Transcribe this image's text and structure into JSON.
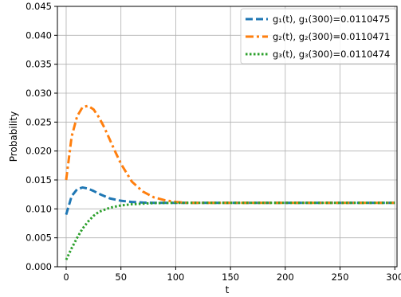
{
  "chart_data": {
    "type": "line",
    "title": "",
    "xlabel": "t",
    "ylabel": "Probability",
    "xlim": [
      -8,
      302
    ],
    "ylim": [
      0,
      0.045
    ],
    "xticks": [
      0,
      50,
      100,
      150,
      200,
      250,
      300
    ],
    "yticks": [
      0.0,
      0.005,
      0.01,
      0.015,
      0.02,
      0.025,
      0.03,
      0.035,
      0.04,
      0.045
    ],
    "grid": true,
    "legend_position": "upper-right",
    "series": [
      {
        "name": "g₁(t), g₁(300)=0.0110475",
        "color": "#1f77b4",
        "style": "dashed",
        "x": [
          0,
          5,
          10,
          15,
          20,
          25,
          30,
          40,
          50,
          60,
          70,
          80,
          100,
          150,
          200,
          250,
          300
        ],
        "y": [
          0.009,
          0.0122,
          0.0134,
          0.0137,
          0.0135,
          0.0131,
          0.0126,
          0.0118,
          0.0114,
          0.0112,
          0.0111,
          0.01105,
          0.01105,
          0.01105,
          0.01105,
          0.01105,
          0.01105
        ]
      },
      {
        "name": "g₂(t), g₂(300)=0.0110471",
        "color": "#ff7f0e",
        "style": "dashdot",
        "x": [
          0,
          5,
          10,
          15,
          20,
          25,
          30,
          35,
          40,
          45,
          50,
          60,
          70,
          80,
          90,
          100,
          110,
          120,
          150,
          200,
          250,
          300
        ],
        "y": [
          0.015,
          0.0225,
          0.026,
          0.0276,
          0.0278,
          0.0272,
          0.0258,
          0.024,
          0.0219,
          0.0198,
          0.0178,
          0.0147,
          0.013,
          0.012,
          0.0115,
          0.0112,
          0.01105,
          0.01105,
          0.01105,
          0.01105,
          0.01105,
          0.01105
        ]
      },
      {
        "name": "g₃(t), g₃(300)=0.0110474",
        "color": "#2ca02c",
        "style": "dotted",
        "x": [
          0,
          5,
          10,
          15,
          20,
          25,
          30,
          40,
          50,
          60,
          70,
          80,
          100,
          150,
          200,
          250,
          300
        ],
        "y": [
          0.0012,
          0.0032,
          0.005,
          0.0066,
          0.0078,
          0.0088,
          0.0095,
          0.0102,
          0.0106,
          0.0108,
          0.0109,
          0.011,
          0.01105,
          0.01105,
          0.01105,
          0.01105,
          0.01105
        ]
      }
    ]
  }
}
